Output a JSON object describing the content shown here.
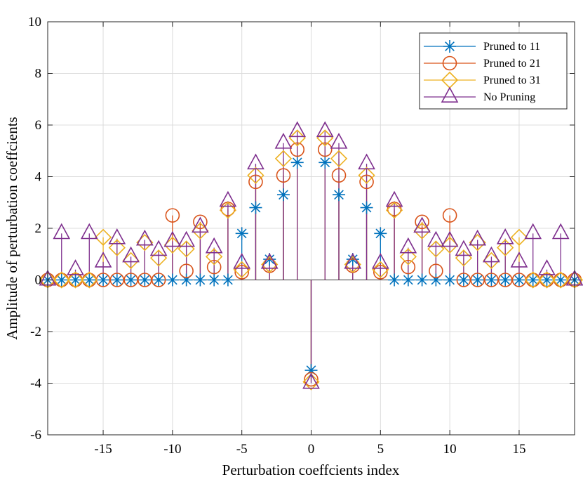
{
  "chart_data": {
    "type": "stem",
    "xlabel": "Perturbation coeffcients index",
    "ylabel": "Amplitude of perturbation coeffcients",
    "xlim": [
      -19,
      19
    ],
    "ylim": [
      -6,
      10
    ],
    "xticks": [
      -15,
      -10,
      -5,
      0,
      5,
      10,
      15
    ],
    "yticks": [
      -6,
      -4,
      -2,
      0,
      2,
      4,
      6,
      8,
      10
    ],
    "grid": true,
    "legend_position": "top-right",
    "x": [
      -19,
      -18,
      -17,
      -16,
      -15,
      -14,
      -13,
      -12,
      -11,
      -10,
      -9,
      -8,
      -7,
      -6,
      -5,
      -4,
      -3,
      -2,
      -1,
      0,
      1,
      2,
      3,
      4,
      5,
      6,
      7,
      8,
      9,
      10,
      11,
      12,
      13,
      14,
      15,
      16,
      17,
      18,
      19
    ],
    "series": [
      {
        "name": "Pruned to 11",
        "color": "#0072bd",
        "marker": "asterisk",
        "values": [
          0,
          0,
          0,
          0,
          0,
          0,
          0,
          0,
          0,
          0,
          0,
          0,
          0,
          0,
          1.8,
          2.8,
          0.8,
          3.3,
          4.55,
          -3.5,
          4.55,
          3.3,
          0.8,
          2.8,
          1.8,
          0,
          0,
          0,
          0,
          0,
          0,
          0,
          0,
          0,
          0,
          0,
          0,
          0,
          0
        ]
      },
      {
        "name": "Pruned to 21",
        "color": "#d95319",
        "marker": "circle",
        "values": [
          0,
          0,
          0,
          0,
          0,
          0,
          0,
          0,
          0,
          2.5,
          0.35,
          2.25,
          0.5,
          2.75,
          0.3,
          3.8,
          0.55,
          4.05,
          5.05,
          -3.85,
          5.05,
          4.05,
          0.55,
          3.8,
          0.3,
          2.75,
          0.5,
          2.25,
          0.35,
          2.5,
          0,
          0,
          0,
          0,
          0,
          0,
          0,
          0,
          0
        ]
      },
      {
        "name": "Pruned to 31",
        "color": "#edb120",
        "marker": "diamond",
        "values": [
          0,
          0,
          0,
          0,
          1.65,
          1.25,
          0.75,
          1.45,
          0.85,
          1.35,
          1.2,
          1.9,
          0.9,
          2.7,
          0.4,
          4.05,
          0.6,
          4.7,
          5.5,
          -3.95,
          5.5,
          4.7,
          0.6,
          4.05,
          0.4,
          2.7,
          0.9,
          1.9,
          1.2,
          1.35,
          0.85,
          1.45,
          0.75,
          1.25,
          1.65,
          0,
          0,
          0,
          0
        ]
      },
      {
        "name": "No Pruning",
        "color": "#7e2f8e",
        "marker": "triangle",
        "values": [
          0,
          1.8,
          0.4,
          1.8,
          0.7,
          1.6,
          0.9,
          1.55,
          1.15,
          1.5,
          1.5,
          2.05,
          1.25,
          3.05,
          0.65,
          4.5,
          0.65,
          5.3,
          5.75,
          -4.0,
          5.75,
          5.3,
          0.65,
          4.5,
          0.65,
          3.05,
          1.25,
          2.05,
          1.5,
          1.5,
          1.15,
          1.55,
          0.9,
          1.6,
          0.7,
          1.8,
          0.4,
          1.8,
          0
        ]
      }
    ]
  }
}
